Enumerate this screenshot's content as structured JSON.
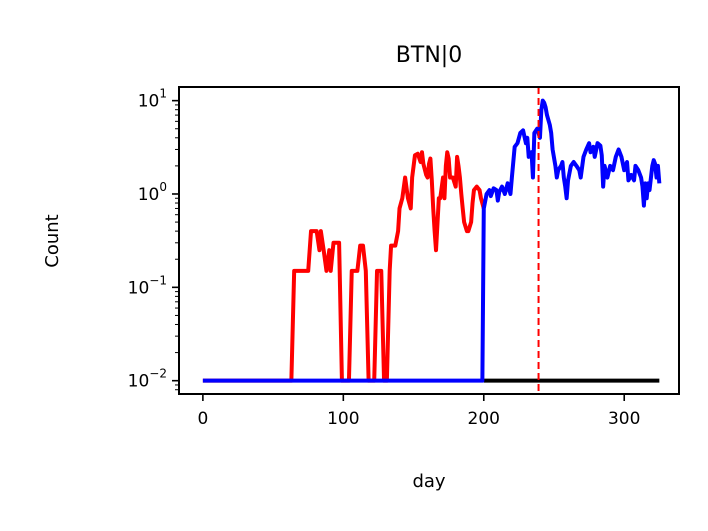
{
  "chart_data": {
    "type": "line",
    "title": "BTN|0",
    "xlabel": "day",
    "ylabel": "Count",
    "yscale": "log",
    "xlim": [
      -17,
      339
    ],
    "ylim": [
      0.0072,
      14
    ],
    "grid": false,
    "x_ticks": [
      0,
      100,
      200,
      300
    ],
    "y_ticks": [
      {
        "value": 0.01,
        "base": "10",
        "exp": "−2"
      },
      {
        "value": 0.1,
        "base": "10",
        "exp": "−1"
      },
      {
        "value": 1,
        "base": "10",
        "exp": "0"
      },
      {
        "value": 10,
        "base": "10",
        "exp": "1"
      }
    ],
    "vline": {
      "x": 239,
      "color": "#ff0000",
      "style": "dashed"
    },
    "colors": {
      "red_series": "#ff0000",
      "blue_series": "#0000ff",
      "black_series": "#000000"
    },
    "series": [
      {
        "color": "#ff0000",
        "points": [
          [
            0,
            0.01
          ],
          [
            63,
            0.01
          ],
          [
            65,
            0.15
          ],
          [
            75,
            0.15
          ],
          [
            77,
            0.4
          ],
          [
            81,
            0.4
          ],
          [
            83,
            0.25
          ],
          [
            84,
            0.4
          ],
          [
            86,
            0.25
          ],
          [
            88,
            0.15
          ],
          [
            90,
            0.25
          ],
          [
            91,
            0.15
          ],
          [
            93,
            0.3
          ],
          [
            97,
            0.3
          ],
          [
            99,
            0.01
          ],
          [
            104,
            0.01
          ],
          [
            106,
            0.15
          ],
          [
            110,
            0.15
          ],
          [
            112,
            0.28
          ],
          [
            114,
            0.28
          ],
          [
            116,
            0.15
          ],
          [
            118,
            0.01
          ],
          [
            122,
            0.01
          ],
          [
            124,
            0.15
          ],
          [
            127,
            0.15
          ],
          [
            129,
            0.01
          ],
          [
            131,
            0.01
          ],
          [
            133,
            0.15
          ],
          [
            134,
            0.28
          ],
          [
            137,
            0.28
          ],
          [
            139,
            0.4
          ],
          [
            140,
            0.7
          ],
          [
            142,
            0.9
          ],
          [
            144,
            1.5
          ],
          [
            146,
            0.9
          ],
          [
            148,
            0.7
          ],
          [
            149,
            1.5
          ],
          [
            151,
            2.6
          ],
          [
            153,
            2.7
          ],
          [
            155,
            2.2
          ],
          [
            156,
            2.8
          ],
          [
            157,
            2.1
          ],
          [
            159,
            1.6
          ],
          [
            160,
            1.5
          ],
          [
            161,
            2.1
          ],
          [
            162,
            2.4
          ],
          [
            163,
            1.4
          ],
          [
            164,
            0.7
          ],
          [
            165,
            0.4
          ],
          [
            166,
            0.25
          ],
          [
            168,
            0.9
          ],
          [
            169,
            0.9
          ],
          [
            171,
            1.5
          ],
          [
            172,
            0.9
          ],
          [
            173,
            2.0
          ],
          [
            174,
            2.8
          ],
          [
            175,
            2.4
          ],
          [
            176,
            1.5
          ],
          [
            178,
            1.5
          ],
          [
            180,
            1.2
          ],
          [
            181,
            2.5
          ],
          [
            182,
            2.0
          ],
          [
            183,
            1.5
          ],
          [
            184,
            1.0
          ],
          [
            185,
            0.7
          ],
          [
            186,
            0.5
          ],
          [
            188,
            0.4
          ],
          [
            189,
            0.4
          ],
          [
            191,
            0.5
          ],
          [
            192,
            0.8
          ],
          [
            193,
            1.1
          ],
          [
            195,
            1.2
          ],
          [
            197,
            1.1
          ],
          [
            198,
            0.9
          ],
          [
            200,
            0.7
          ]
        ]
      },
      {
        "color": "#000000",
        "points": [
          [
            200,
            0.01
          ],
          [
            325,
            0.01
          ]
        ]
      },
      {
        "color": "#0000ff",
        "points": [
          [
            0,
            0.01
          ],
          [
            199,
            0.01
          ],
          [
            200,
            0.7
          ],
          [
            202,
            1.0
          ],
          [
            204,
            1.1
          ],
          [
            205,
            0.95
          ],
          [
            207,
            1.15
          ],
          [
            209,
            1.1
          ],
          [
            210,
            0.85
          ],
          [
            211,
            1.05
          ],
          [
            213,
            1.2
          ],
          [
            215,
            1.0
          ],
          [
            217,
            1.3
          ],
          [
            219,
            1.0
          ],
          [
            220,
            1.5
          ],
          [
            222,
            3.2
          ],
          [
            224,
            3.5
          ],
          [
            226,
            4.5
          ],
          [
            228,
            4.8
          ],
          [
            230,
            3.5
          ],
          [
            231,
            4.0
          ],
          [
            232,
            2.5
          ],
          [
            234,
            2.8
          ],
          [
            235,
            1.5
          ],
          [
            236,
            4.5
          ],
          [
            238,
            5.0
          ],
          [
            240,
            4.0
          ],
          [
            241,
            8.0
          ],
          [
            242,
            10.0
          ],
          [
            243,
            9.5
          ],
          [
            244,
            8.5
          ],
          [
            245,
            7.0
          ],
          [
            247,
            5.5
          ],
          [
            248,
            4.5
          ],
          [
            249,
            3.0
          ],
          [
            251,
            2.0
          ],
          [
            252,
            1.5
          ],
          [
            253,
            1.8
          ],
          [
            255,
            2.0
          ],
          [
            256,
            2.2
          ],
          [
            257,
            1.5
          ],
          [
            258,
            1.2
          ],
          [
            259,
            0.9
          ],
          [
            260,
            1.4
          ],
          [
            262,
            2.0
          ],
          [
            264,
            2.2
          ],
          [
            266,
            2.0
          ],
          [
            268,
            1.8
          ],
          [
            269,
            1.5
          ],
          [
            271,
            2.5
          ],
          [
            273,
            3.0
          ],
          [
            275,
            3.5
          ],
          [
            276,
            2.8
          ],
          [
            278,
            3.2
          ],
          [
            279,
            2.5
          ],
          [
            281,
            3.5
          ],
          [
            283,
            3.3
          ],
          [
            284,
            2.6
          ],
          [
            285,
            1.2
          ],
          [
            286,
            2.0
          ],
          [
            288,
            1.5
          ],
          [
            290,
            2.0
          ],
          [
            292,
            1.8
          ],
          [
            294,
            2.5
          ],
          [
            296,
            3.0
          ],
          [
            298,
            2.5
          ],
          [
            300,
            1.8
          ],
          [
            302,
            2.2
          ],
          [
            303,
            1.4
          ],
          [
            305,
            1.6
          ],
          [
            307,
            1.4
          ],
          [
            308,
            2.0
          ],
          [
            310,
            1.8
          ],
          [
            312,
            1.5
          ],
          [
            313,
            1.2
          ],
          [
            314,
            0.75
          ],
          [
            315,
            1.3
          ],
          [
            316,
            0.9
          ],
          [
            317,
            1.3
          ],
          [
            318,
            1.1
          ],
          [
            320,
            2.0
          ],
          [
            321,
            2.3
          ],
          [
            322,
            2.1
          ],
          [
            323,
            1.5
          ],
          [
            324,
            2.0
          ],
          [
            325,
            1.3
          ]
        ]
      }
    ]
  }
}
